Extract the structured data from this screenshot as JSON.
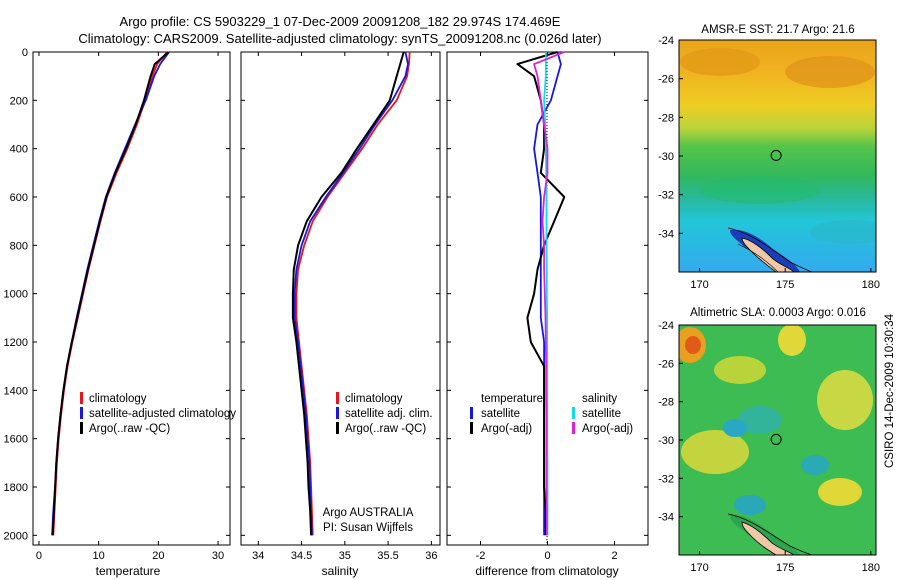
{
  "title_line1": "Argo profile: CS 5903229_1 07-Dec-2009 20091208_182 29.974S 174.469E",
  "title_line2": "Climatology: CARS2009. Satellite-adjusted climatology: synTS_20091208.nc (0.026d later)",
  "credit_line1": "Argo AUSTRALIA",
  "credit_line2": "PI: Susan Wijffels",
  "side_stamp": "CSIRO 14-Dec-2009 10:30:34",
  "colors": {
    "red": "#e8151b",
    "blue": "#1717e0",
    "black": "#000000",
    "cyan": "#11dde8",
    "magenta": "#dd22dd"
  },
  "chart_data": [
    {
      "type": "line",
      "xlabel": "temperature",
      "xlim": [
        -1,
        32
      ],
      "ylim": [
        2040,
        0
      ],
      "xticks": [
        0,
        10,
        20,
        30
      ],
      "yticks": [
        0,
        200,
        400,
        600,
        800,
        1000,
        1200,
        1400,
        1600,
        1800,
        2000
      ],
      "depth": [
        0,
        50,
        100,
        200,
        300,
        400,
        500,
        600,
        700,
        800,
        900,
        1000,
        1100,
        1200,
        1300,
        1400,
        1500,
        1600,
        1700,
        1800,
        1900,
        2000
      ],
      "series": [
        {
          "name": "climatology",
          "color": "red",
          "values": [
            21.5,
            19.8,
            19.0,
            17.8,
            16.4,
            14.8,
            13.0,
            11.4,
            10.3,
            9.3,
            8.3,
            7.4,
            6.5,
            5.6,
            4.8,
            4.2,
            3.7,
            3.3,
            3.0,
            2.8,
            2.6,
            2.4
          ]
        },
        {
          "name": "satellite-adjusted climatology",
          "color": "blue",
          "values": [
            21.8,
            20.3,
            19.3,
            17.9,
            16.1,
            14.4,
            12.7,
            11.2,
            10.1,
            9.1,
            8.1,
            7.2,
            6.3,
            5.5,
            4.7,
            4.1,
            3.6,
            3.2,
            2.9,
            2.7,
            2.4,
            2.2
          ]
        },
        {
          "name": "Argo(..raw -QC)",
          "color": "black",
          "values": [
            21.7,
            19.4,
            18.7,
            17.6,
            16.2,
            14.6,
            12.8,
            11.3,
            10.2,
            9.2,
            8.2,
            7.3,
            6.4,
            5.5,
            4.7,
            4.1,
            3.6,
            3.2,
            2.9,
            2.7,
            2.5,
            2.3
          ]
        }
      ],
      "legend": [
        "climatology",
        "satellite-adjusted climatology",
        "Argo(..raw -QC)"
      ]
    },
    {
      "type": "line",
      "xlabel": "salinity",
      "xlim": [
        33.8,
        36.1
      ],
      "ylim": [
        2040,
        0
      ],
      "xticks": [
        34,
        34.5,
        35,
        35.5,
        36
      ],
      "yticks": [
        0,
        200,
        400,
        600,
        800,
        1000,
        1200,
        1400,
        1600,
        1800,
        2000
      ],
      "depth": [
        0,
        50,
        100,
        200,
        300,
        400,
        500,
        600,
        700,
        800,
        900,
        1000,
        1100,
        1200,
        1300,
        1400,
        1500,
        1600,
        1700,
        1800,
        1900,
        2000
      ],
      "series": [
        {
          "name": "climatology",
          "color": "red",
          "values": [
            35.75,
            35.74,
            35.72,
            35.6,
            35.38,
            35.2,
            35.0,
            34.8,
            34.63,
            34.53,
            34.46,
            34.44,
            34.44,
            34.47,
            34.5,
            34.53,
            34.56,
            34.58,
            34.6,
            34.61,
            34.62,
            34.63
          ]
        },
        {
          "name": "satellite adj. clim.",
          "color": "blue",
          "values": [
            35.7,
            35.73,
            35.7,
            35.55,
            35.35,
            35.17,
            34.98,
            34.78,
            34.6,
            34.5,
            34.44,
            34.42,
            34.42,
            34.46,
            34.49,
            34.52,
            34.55,
            34.57,
            34.59,
            34.6,
            34.61,
            34.62
          ]
        },
        {
          "name": "Argo(..raw -QC)",
          "color": "black",
          "values": [
            35.68,
            35.64,
            35.6,
            35.52,
            35.33,
            35.14,
            34.96,
            34.73,
            34.56,
            34.46,
            34.41,
            34.4,
            34.4,
            34.44,
            34.47,
            34.5,
            34.53,
            34.55,
            34.57,
            34.58,
            34.6,
            34.61
          ]
        }
      ],
      "legend": [
        "climatology",
        "satellite adj. clim.",
        "Argo(..raw -QC)"
      ]
    },
    {
      "type": "line",
      "xlabel": "difference from climatology",
      "xlim": [
        -3,
        3
      ],
      "ylim": [
        2040,
        0
      ],
      "xticks": [
        -2,
        0,
        2
      ],
      "yticks": [
        0,
        200,
        400,
        600,
        800,
        1000,
        1200,
        1400,
        1600,
        1800,
        2000
      ],
      "depth": [
        0,
        50,
        100,
        200,
        300,
        400,
        500,
        600,
        700,
        800,
        900,
        1000,
        1100,
        1200,
        1300,
        1400,
        1500,
        1600,
        1700,
        1800,
        1900,
        2000
      ],
      "series": [
        {
          "name": "temperature satellite",
          "color": "blue",
          "values": [
            0.3,
            0.4,
            0.3,
            0.1,
            -0.3,
            -0.4,
            -0.3,
            -0.2,
            -0.2,
            -0.2,
            -0.2,
            -0.2,
            -0.2,
            -0.1,
            -0.1,
            -0.1,
            -0.1,
            -0.1,
            -0.1,
            -0.1,
            -0.1,
            -0.1
          ]
        },
        {
          "name": "temperature Argo(-adj)",
          "color": "black",
          "values": [
            0.3,
            -0.9,
            -0.4,
            -0.2,
            -0.1,
            -0.1,
            -0.2,
            0.5,
            0.2,
            -0.1,
            -0.3,
            -0.4,
            -0.6,
            -0.5,
            -0.1,
            -0.1,
            -0.1,
            -0.1,
            -0.1,
            -0.1,
            -0.05,
            -0.05
          ]
        },
        {
          "name": "salinity satellite",
          "color": "cyan",
          "values": [
            -0.05,
            -0.05,
            -0.05,
            -0.1,
            -0.07,
            -0.05,
            -0.04,
            -0.03,
            -0.03,
            -0.03,
            -0.02,
            -0.02,
            -0.01,
            -0.01,
            -0.01,
            -0.01,
            -0.01,
            -0.01,
            0.0,
            0.0,
            0.0,
            0.0
          ]
        },
        {
          "name": "salinity Argo(-adj)",
          "color": "magenta",
          "values": [
            0.5,
            -0.4,
            -0.3,
            -0.2,
            -0.1,
            0.0,
            0.0,
            -0.1,
            -0.15,
            -0.1,
            -0.1,
            -0.08,
            -0.06,
            -0.05,
            -0.04,
            -0.04,
            -0.03,
            -0.03,
            -0.03,
            -0.03,
            -0.02,
            -0.02
          ]
        }
      ],
      "legend": [
        "temperature",
        "satellite",
        "Argo(-adj)",
        "salinity",
        "satellite",
        "Argo(-adj)"
      ]
    },
    {
      "type": "heatmap",
      "title": "AMSR-E SST: 21.7 Argo: 21.6",
      "xlim": [
        168.8,
        180.3
      ],
      "ylim": [
        -36,
        -24
      ],
      "xticks": [
        170,
        175,
        180
      ],
      "yticks": [
        -24,
        -26,
        -28,
        -30,
        -32,
        -34
      ],
      "marker": {
        "lon": 174.47,
        "lat": -29.97
      }
    },
    {
      "type": "heatmap",
      "title": "Altimetric SLA: 0.0003 Argo: 0.016",
      "xlim": [
        168.8,
        180.3
      ],
      "ylim": [
        -36,
        -24
      ],
      "xticks": [
        170,
        175,
        180
      ],
      "yticks": [
        -24,
        -26,
        -28,
        -30,
        -32,
        -34
      ],
      "marker": {
        "lon": 174.47,
        "lat": -29.97
      }
    }
  ]
}
